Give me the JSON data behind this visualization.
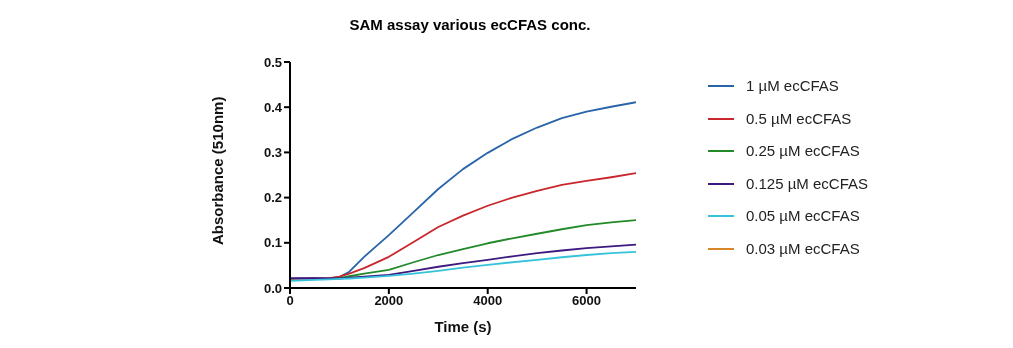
{
  "chart_data": {
    "type": "line",
    "title": "SAM assay various ecCFAS conc.",
    "xlabel": "Time (s)",
    "ylabel": "Absorbance (510nm)",
    "x": [
      0,
      500,
      800,
      1000,
      1200,
      1500,
      2000,
      2500,
      3000,
      3500,
      4000,
      4500,
      5000,
      5500,
      6000,
      6500,
      7000
    ],
    "series": [
      {
        "name": "1 µM ecCFAS",
        "color": "#2a64a8",
        "values": [
          0.02,
          0.021,
          0.022,
          0.024,
          0.036,
          0.069,
          0.117,
          0.168,
          0.219,
          0.263,
          0.299,
          0.33,
          0.355,
          0.376,
          0.39,
          0.401,
          0.411
        ]
      },
      {
        "name": "0.5 µM ecCFAS",
        "color": "#c8282d",
        "values": [
          0.02,
          0.021,
          0.022,
          0.025,
          0.032,
          0.044,
          0.069,
          0.102,
          0.135,
          0.16,
          0.182,
          0.2,
          0.215,
          0.228,
          0.237,
          0.245,
          0.254
        ]
      },
      {
        "name": "0.25 µM ecCFAS",
        "color": "#238a2a",
        "values": [
          null,
          null,
          0.02,
          0.022,
          0.026,
          0.032,
          0.04,
          0.057,
          0.073,
          0.086,
          0.099,
          0.11,
          0.12,
          0.13,
          0.139,
          0.145,
          0.15
        ]
      },
      {
        "name": "0.125 µM ecCFAS",
        "color": "#3c1a80",
        "values": [
          0.022,
          0.022,
          0.021,
          0.021,
          0.023,
          0.025,
          0.029,
          0.038,
          0.047,
          0.055,
          0.062,
          0.07,
          0.077,
          0.083,
          0.088,
          0.092,
          0.096
        ]
      },
      {
        "name": "0.05 µM ecCFAS",
        "color": "#35c3dc",
        "values": [
          0.016,
          0.018,
          0.019,
          0.02,
          0.021,
          0.023,
          0.027,
          0.032,
          0.038,
          0.045,
          0.051,
          0.057,
          0.062,
          0.068,
          0.073,
          0.077,
          0.08
        ]
      },
      {
        "name": "0.03 µM ecCFAS",
        "color": "#d9862b",
        "values": [
          null,
          null,
          null,
          null,
          null,
          null,
          null,
          null,
          null,
          null,
          null,
          null,
          null,
          null,
          null,
          null,
          null
        ]
      }
    ],
    "xlim": [
      0,
      7000
    ],
    "xticks": [
      0,
      2000,
      4000,
      6000
    ],
    "ylim": [
      0,
      0.5
    ],
    "yticks": [
      {
        "value": 0,
        "label": "0.0"
      },
      {
        "value": 0.1,
        "label": "0.1"
      },
      {
        "value": 0.2,
        "label": "0.2"
      },
      {
        "value": 0.3,
        "label": "0.3"
      },
      {
        "value": 0.4,
        "label": "0.4"
      },
      {
        "value": 0.5,
        "label": "0.5"
      }
    ],
    "grid": false,
    "legend": "right",
    "marker": "none",
    "line_style": "solid"
  }
}
